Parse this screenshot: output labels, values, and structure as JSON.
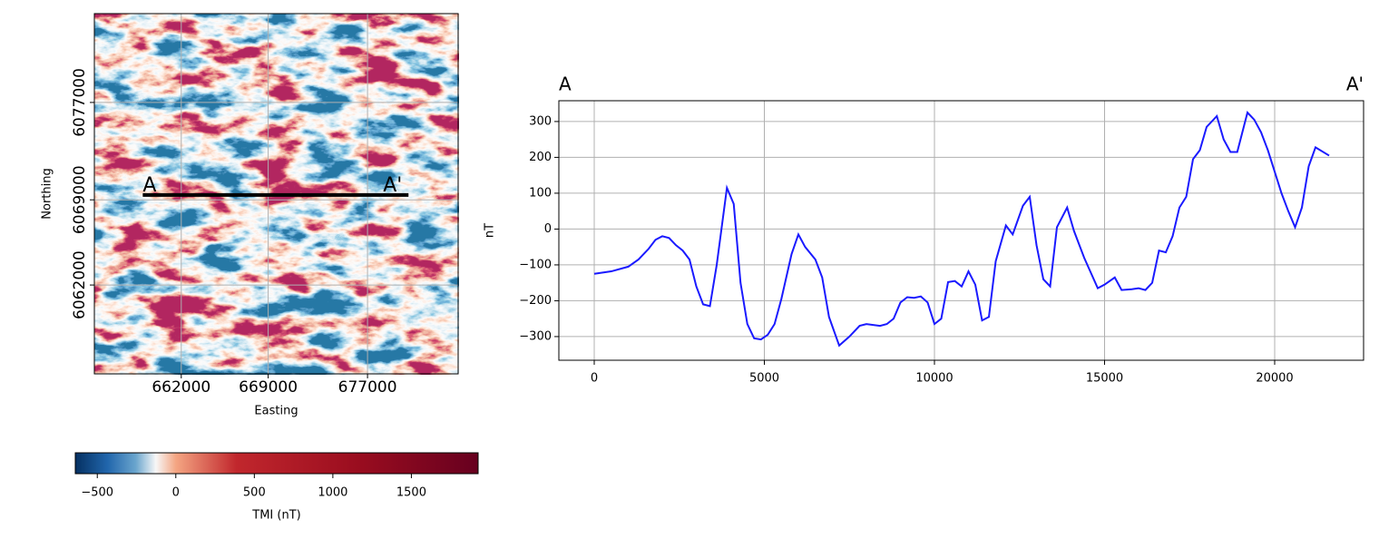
{
  "chart_data": [
    {
      "type": "map",
      "xlabel": "Easting",
      "ylabel": "Northing",
      "xlim": [
        655000,
        684300
      ],
      "ylim": [
        6054700,
        6084300
      ],
      "xticks": [
        662000,
        669000,
        677000
      ],
      "yticks": [
        6062000,
        6069000,
        6077000
      ],
      "grid": true,
      "profile": {
        "x": [
          658900,
          680300
        ],
        "y": [
          6069400,
          6069400
        ],
        "labels": [
          "A",
          "A'"
        ],
        "color": "#000000"
      },
      "colorbar": {
        "label": "TMI (nT)",
        "clim": [
          -640,
          1925
        ],
        "ticks": [
          {
            "value": -500,
            "label": "−500"
          },
          0,
          500,
          1000,
          1500
        ]
      }
    },
    {
      "type": "line",
      "title_left": "A",
      "title_right": "A'",
      "ylabel": "nT",
      "color": "#1a1aff",
      "x": [
        0,
        500,
        1000,
        1300,
        1600,
        1800,
        2000,
        2200,
        2400,
        2600,
        2800,
        3000,
        3200,
        3400,
        3600,
        3900,
        4100,
        4300,
        4500,
        4700,
        4900,
        5100,
        5300,
        5500,
        5800,
        6000,
        6200,
        6500,
        6700,
        6900,
        7200,
        7500,
        7800,
        8000,
        8400,
        8600,
        8800,
        9000,
        9200,
        9400,
        9600,
        9800,
        10000,
        10200,
        10400,
        10600,
        10800,
        11000,
        11200,
        11400,
        11600,
        11800,
        12100,
        12300,
        12600,
        12800,
        13000,
        13200,
        13400,
        13600,
        13900,
        14100,
        14400,
        14800,
        15000,
        15300,
        15500,
        15800,
        16000,
        16200,
        16400,
        16600,
        16800,
        17000,
        17200,
        17400,
        17600,
        17800,
        18000,
        18300,
        18500,
        18700,
        18900,
        19200,
        19400,
        19600,
        19800,
        20000,
        20200,
        20400,
        20600,
        20800,
        21000,
        21200,
        21600
      ],
      "values": [
        -125,
        -118,
        -105,
        -85,
        -55,
        -30,
        -20,
        -25,
        -45,
        -60,
        -85,
        -160,
        -210,
        -215,
        -100,
        115,
        70,
        -150,
        -265,
        -305,
        -308,
        -295,
        -265,
        -195,
        -70,
        -15,
        -50,
        -85,
        -135,
        -245,
        -325,
        -300,
        -270,
        -265,
        -270,
        -265,
        -250,
        -205,
        -190,
        -192,
        -188,
        -205,
        -265,
        -250,
        -148,
        -145,
        -160,
        -118,
        -155,
        -255,
        -245,
        -90,
        10,
        -15,
        65,
        90,
        -45,
        -140,
        -160,
        5,
        60,
        -5,
        -80,
        -165,
        -155,
        -135,
        -170,
        -168,
        -165,
        -170,
        -150,
        -60,
        -65,
        -20,
        60,
        90,
        195,
        220,
        285,
        315,
        250,
        215,
        215,
        325,
        305,
        270,
        220,
        160,
        100,
        50,
        5,
        60,
        175,
        228,
        205
      ],
      "xlim": [
        -1040,
        22613
      ],
      "ylim": [
        -366,
        358
      ],
      "xticks": [
        0,
        5000,
        10000,
        15000,
        20000
      ],
      "yticks": [
        {
          "value": -300,
          "label": "−300"
        },
        {
          "value": -200,
          "label": "−200"
        },
        {
          "value": -100,
          "label": "−100"
        },
        0,
        100,
        200,
        300
      ],
      "grid": true
    }
  ]
}
